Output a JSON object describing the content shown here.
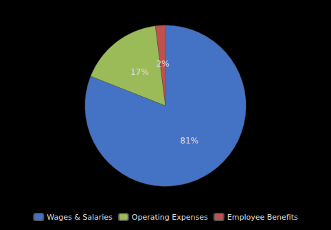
{
  "chart_data": {
    "type": "pie",
    "categories": [
      "Wages & Salaries",
      "Operating Expenses",
      "Employee Benefits"
    ],
    "values": [
      81,
      17,
      2
    ],
    "value_labels": [
      "81%",
      "17%",
      "2%"
    ],
    "colors": [
      "#4472C4",
      "#9BBB59",
      "#C0504D"
    ],
    "data_labels": true,
    "legend": "bottom"
  }
}
